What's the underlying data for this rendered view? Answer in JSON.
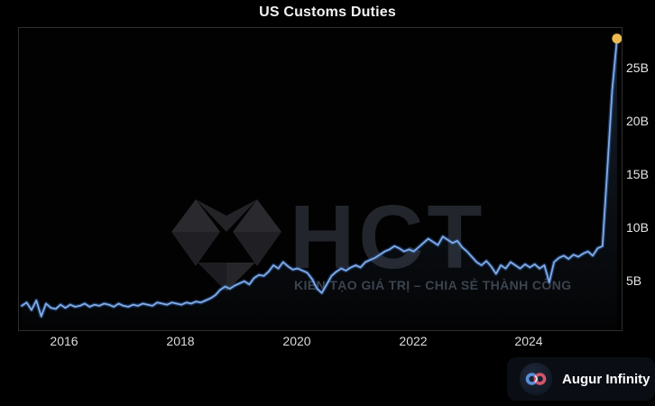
{
  "title": "US Customs Duties",
  "watermark": {
    "brand": "HCT",
    "tagline": "KIẾN TẠO GIÁ TRỊ – CHIA SẺ THÀNH CÔNG",
    "logo": "diamond-gem-icon"
  },
  "branding": {
    "name": "Augur Infinity",
    "logo": "infinity-icon",
    "logo_colors": {
      "left_loop": "#5b8fd6",
      "right_loop": "#d4566b",
      "circle_bg": "#161f2d"
    }
  },
  "colors": {
    "background": "#000000",
    "chart_border": "#2e2e2e",
    "line": "#83ace4",
    "line_glow": "#2b5dab",
    "area_fill": "#46648c",
    "endpoint_dot": "#ecba50",
    "axis_label": "#e6e6e6",
    "watermark_text": "#3b424c"
  },
  "chart_data": {
    "type": "line",
    "title": "US Customs Duties",
    "x_start": 2015.25,
    "x_step_years": 0.0833333,
    "values": [
      2.8,
      3.1,
      2.4,
      3.3,
      1.8,
      3.0,
      2.6,
      2.5,
      2.9,
      2.6,
      2.9,
      2.7,
      2.8,
      3.0,
      2.7,
      2.9,
      2.8,
      3.0,
      2.9,
      2.7,
      3.0,
      2.8,
      2.7,
      2.9,
      2.8,
      3.0,
      2.9,
      2.8,
      3.1,
      3.0,
      2.9,
      3.1,
      3.0,
      2.9,
      3.1,
      3.0,
      3.2,
      3.1,
      3.3,
      3.5,
      3.8,
      4.3,
      4.6,
      4.4,
      4.7,
      4.9,
      5.1,
      4.8,
      5.4,
      5.7,
      5.6,
      6.0,
      6.6,
      6.3,
      6.9,
      6.5,
      6.2,
      6.3,
      6.1,
      5.9,
      5.3,
      4.4,
      4.0,
      4.8,
      5.6,
      6.0,
      6.3,
      6.1,
      6.4,
      6.6,
      6.4,
      6.9,
      7.1,
      7.3,
      7.6,
      7.9,
      8.1,
      8.4,
      8.2,
      7.9,
      8.1,
      7.9,
      8.3,
      8.7,
      9.1,
      8.8,
      8.5,
      9.3,
      9.0,
      8.7,
      8.9,
      8.3,
      7.9,
      7.4,
      6.9,
      6.6,
      7.0,
      6.5,
      5.8,
      6.6,
      6.3,
      6.9,
      6.6,
      6.3,
      6.7,
      6.4,
      6.7,
      6.3,
      6.6,
      5.0,
      6.9,
      7.3,
      7.5,
      7.2,
      7.6,
      7.4,
      7.7,
      7.9,
      7.5,
      8.2,
      8.4,
      15.5,
      23.0,
      27.9
    ],
    "endpoint_value": 27.9,
    "xlim": [
      2015.2,
      2025.58
    ],
    "ylim": [
      0.5,
      28.9
    ],
    "xticks": [
      2016,
      2018,
      2020,
      2022,
      2024
    ],
    "xtick_labels": [
      "2016",
      "2018",
      "2020",
      "2022",
      "2024"
    ],
    "yticks": [
      5,
      10,
      15,
      20,
      25
    ],
    "ytick_labels": [
      "5B",
      "10B",
      "15B",
      "20B",
      "25B"
    ],
    "grid": false,
    "legend": false,
    "y_axis_side": "right"
  }
}
